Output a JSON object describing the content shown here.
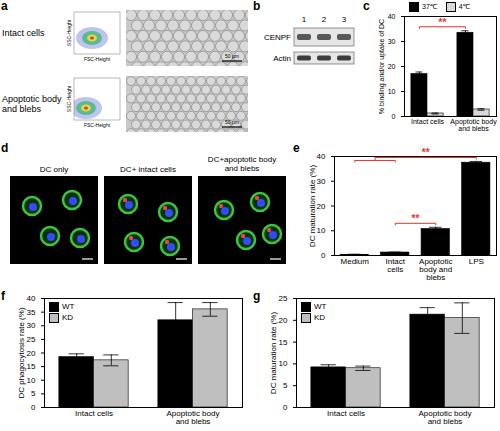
{
  "chart_data": [
    {
      "panel": "c",
      "type": "bar",
      "y_label": "% binding and/or uptake of DC",
      "categories": [
        "Intact cells",
        "Apoptotic body and blebs"
      ],
      "series": [
        {
          "name": "37℃",
          "color": "#000000",
          "values": [
            17,
            33.5
          ],
          "errors": [
            0.8,
            0.8
          ]
        },
        {
          "name": "4℃",
          "color": "#d9d9d9",
          "values": [
            1.2,
            2.8
          ],
          "errors": [
            0.2,
            0.3
          ]
        }
      ],
      "ylim": [
        0,
        40
      ],
      "yticks": [
        0,
        10,
        20,
        30,
        40
      ],
      "legend": "top",
      "annotations": [
        {
          "series": "37℃",
          "from": 0,
          "to": 1,
          "text": "**",
          "color": "#e8322b"
        }
      ]
    },
    {
      "panel": "e",
      "type": "bar",
      "y_label": "DC maturation rate (%)",
      "categories": [
        "Medium",
        "Intact cells",
        "Apoptotic body and blebs",
        "LPS"
      ],
      "values": [
        0.3,
        1.2,
        10.7,
        37.5
      ],
      "errors": [
        0.2,
        0.2,
        0.7,
        0.5
      ],
      "color": "#000000",
      "ylim": [
        0,
        40
      ],
      "yticks": [
        0,
        10,
        20,
        30,
        40
      ],
      "annotations": [
        {
          "from": 1,
          "to": 2,
          "text": "**",
          "color": "#e8322b"
        },
        {
          "from": [
            0,
            1
          ],
          "to": 3,
          "text": "**",
          "color": "#e8322b"
        }
      ]
    },
    {
      "panel": "f",
      "type": "bar",
      "y_label": "DC phagocytosis rate (%)",
      "categories": [
        "Intact cells",
        "Apoptotic body and blebs"
      ],
      "series": [
        {
          "name": "WT",
          "color": "#000000",
          "values": [
            18.5,
            32
          ],
          "errors": [
            1.2,
            6.5
          ]
        },
        {
          "name": "KD",
          "color": "#bfbfbf",
          "values": [
            17.3,
            36
          ],
          "errors": [
            2,
            2.5
          ]
        }
      ],
      "ylim": [
        0,
        40
      ],
      "yticks": [
        0,
        5,
        10,
        15,
        20,
        25,
        30,
        35,
        40
      ],
      "legend": "upper left"
    },
    {
      "panel": "g",
      "type": "bar",
      "y_label": "DC maturation rate (%)",
      "categories": [
        "Intact cells",
        "Apoptotic body and blebs"
      ],
      "series": [
        {
          "name": "WT",
          "color": "#000000",
          "values": [
            9.2,
            21.3
          ],
          "errors": [
            0.6,
            1.6
          ]
        },
        {
          "name": "KD",
          "color": "#bfbfbf",
          "values": [
            9,
            20.5
          ],
          "errors": [
            0.5,
            3.5
          ]
        }
      ],
      "ylim": [
        0,
        25
      ],
      "yticks": [
        0,
        5,
        10,
        15,
        20,
        25
      ],
      "legend": "upper left"
    }
  ],
  "image_panels": [
    {
      "panel": "a",
      "rows": [
        "Intact cells",
        "Apoptotic body and blebs"
      ],
      "x_label": "FSC-Height",
      "y_label": "SSC-Height",
      "scale_bar": "50 μm"
    },
    {
      "panel": "b",
      "lanes": [
        "1",
        "2",
        "3"
      ],
      "bands": [
        "CENPF",
        "Actin"
      ]
    },
    {
      "panel": "d",
      "images": [
        "DC only",
        "DC+ intact cells",
        "DC+apoptotic body and blebs"
      ]
    }
  ]
}
